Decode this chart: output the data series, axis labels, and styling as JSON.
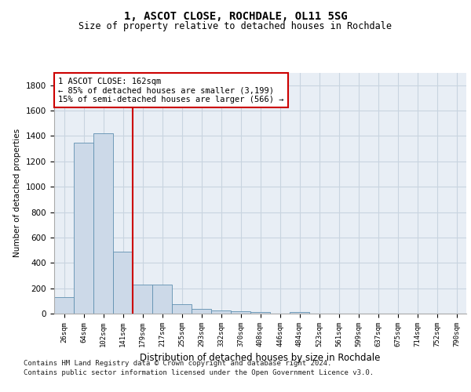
{
  "title": "1, ASCOT CLOSE, ROCHDALE, OL11 5SG",
  "subtitle": "Size of property relative to detached houses in Rochdale",
  "xlabel": "Distribution of detached houses by size in Rochdale",
  "ylabel": "Number of detached properties",
  "categories": [
    "26sqm",
    "64sqm",
    "102sqm",
    "141sqm",
    "179sqm",
    "217sqm",
    "255sqm",
    "293sqm",
    "332sqm",
    "370sqm",
    "408sqm",
    "446sqm",
    "484sqm",
    "523sqm",
    "561sqm",
    "599sqm",
    "637sqm",
    "675sqm",
    "714sqm",
    "752sqm",
    "790sqm"
  ],
  "values": [
    130,
    1350,
    1420,
    490,
    230,
    230,
    75,
    40,
    25,
    20,
    15,
    0,
    15,
    0,
    0,
    0,
    0,
    0,
    0,
    0,
    0
  ],
  "bar_color": "#ccd9e8",
  "bar_edge_color": "#6090b0",
  "grid_color": "#c8d4e0",
  "background_color": "#e8eef5",
  "vline_x": 3.5,
  "annotation_lines": [
    "1 ASCOT CLOSE: 162sqm",
    "← 85% of detached houses are smaller (3,199)",
    "15% of semi-detached houses are larger (566) →"
  ],
  "footer_line1": "Contains HM Land Registry data © Crown copyright and database right 2024.",
  "footer_line2": "Contains public sector information licensed under the Open Government Licence v3.0.",
  "ylim": [
    0,
    1900
  ],
  "yticks": [
    0,
    200,
    400,
    600,
    800,
    1000,
    1200,
    1400,
    1600,
    1800
  ]
}
